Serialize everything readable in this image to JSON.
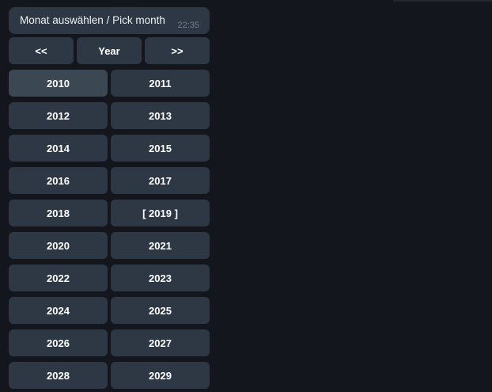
{
  "colors": {
    "background": "#13161d",
    "bubble": "#2e3844",
    "button": "#2e3844",
    "button_highlighted": "#3c4754",
    "button_text": "#ffffff",
    "message_text": "#eef1f4",
    "timestamp": "#6f7b88"
  },
  "message": {
    "text": "Monat auswählen / Pick month",
    "time": "22:35"
  },
  "keyboard": {
    "nav": [
      {
        "label": "<<"
      },
      {
        "label": "Year"
      },
      {
        "label": ">>"
      }
    ],
    "years": [
      {
        "label": "2010"
      },
      {
        "label": "2011"
      },
      {
        "label": "2012"
      },
      {
        "label": "2013"
      },
      {
        "label": "2014"
      },
      {
        "label": "2015"
      },
      {
        "label": "2016"
      },
      {
        "label": "2017"
      },
      {
        "label": "2018"
      },
      {
        "label": "[ 2019 ]"
      },
      {
        "label": "2020"
      },
      {
        "label": "2021"
      },
      {
        "label": "2022"
      },
      {
        "label": "2023"
      },
      {
        "label": "2024"
      },
      {
        "label": "2025"
      },
      {
        "label": "2026"
      },
      {
        "label": "2027"
      },
      {
        "label": "2028"
      },
      {
        "label": "2029"
      }
    ],
    "selected_year": "2019",
    "highlighted_year": "2010"
  }
}
